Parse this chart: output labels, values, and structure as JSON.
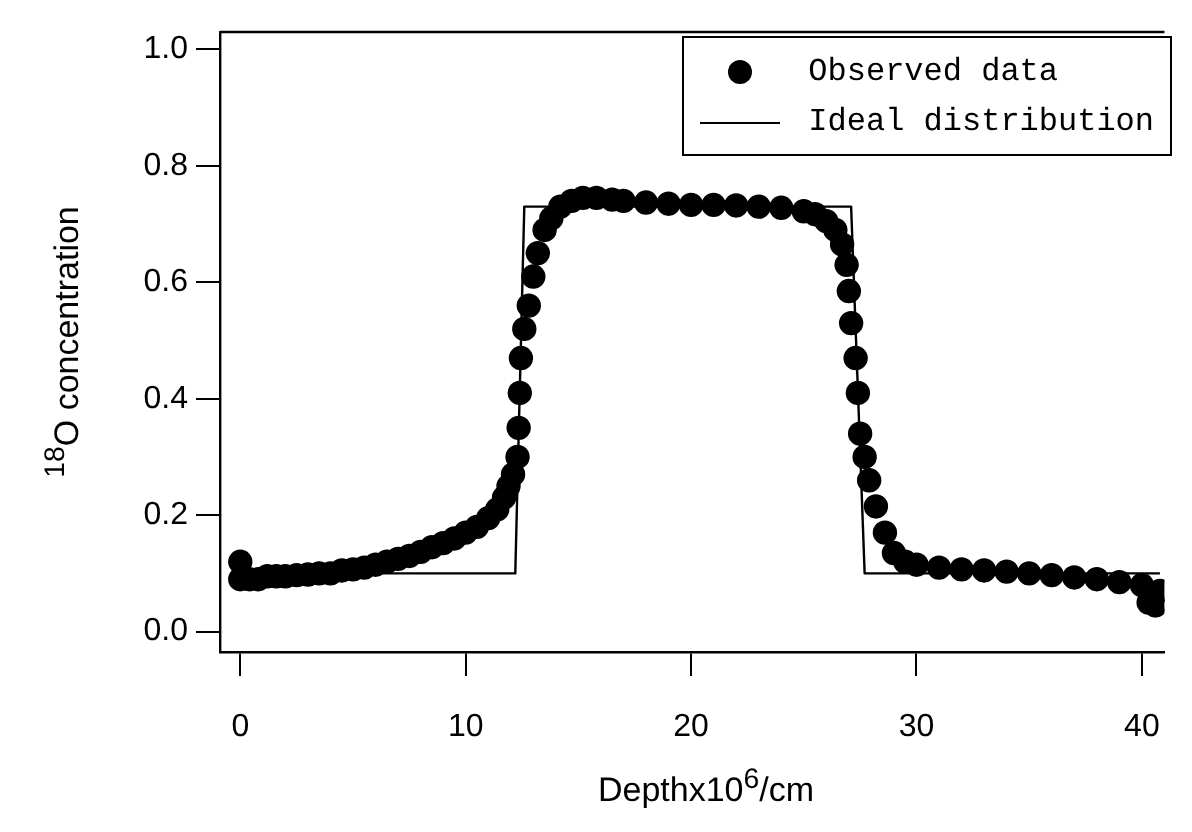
{
  "chart_data": {
    "type": "scatter",
    "xlabel": "Depthx10$^{6}$/cm",
    "ylabel": "$^{18}$O concentration",
    "xlim": [
      -0.9,
      41
    ],
    "ylim": [
      -0.035,
      1.03
    ],
    "xticks": [
      0,
      10,
      20,
      30,
      40
    ],
    "yticks": [
      {
        "value": 0,
        "label": "0.0"
      },
      0.2,
      0.4,
      0.6,
      0.8,
      {
        "value": 1,
        "label": "1.0"
      }
    ],
    "grid": false,
    "legend": "top right",
    "series": [
      {
        "name": "Observed data",
        "type": "scatter",
        "marker": "circle",
        "color": "#000000",
        "x": [
          0,
          0,
          0.4,
          0.8,
          1.2,
          1.6,
          2,
          2.5,
          3,
          3.5,
          4,
          4.5,
          5,
          5.5,
          6,
          6.5,
          7,
          7.5,
          8,
          8.5,
          9,
          9.5,
          10,
          10.5,
          11,
          11.4,
          11.7,
          11.9,
          12.1,
          12.3,
          12.35,
          12.4,
          12.45,
          12.6,
          12.8,
          13,
          13.2,
          13.5,
          13.8,
          14.2,
          14.7,
          15.2,
          15.8,
          16.5,
          17,
          18,
          19,
          20,
          21,
          22,
          23,
          24,
          25,
          25.5,
          26,
          26.4,
          26.7,
          26.9,
          27,
          27.1,
          27.3,
          27.4,
          27.5,
          27.7,
          27.9,
          28.2,
          28.6,
          29,
          29.5,
          30,
          31,
          32,
          33,
          34,
          35,
          36,
          37,
          38,
          39,
          40,
          40.3,
          40.6,
          40.8
        ],
        "values": [
          0.12,
          0.09,
          0.09,
          0.09,
          0.095,
          0.095,
          0.095,
          0.097,
          0.098,
          0.1,
          0.1,
          0.105,
          0.107,
          0.11,
          0.115,
          0.12,
          0.125,
          0.13,
          0.137,
          0.145,
          0.152,
          0.16,
          0.17,
          0.18,
          0.195,
          0.21,
          0.23,
          0.25,
          0.27,
          0.3,
          0.35,
          0.41,
          0.47,
          0.52,
          0.56,
          0.61,
          0.65,
          0.69,
          0.71,
          0.73,
          0.74,
          0.745,
          0.745,
          0.742,
          0.74,
          0.737,
          0.735,
          0.733,
          0.733,
          0.732,
          0.73,
          0.728,
          0.722,
          0.717,
          0.705,
          0.69,
          0.665,
          0.63,
          0.585,
          0.53,
          0.47,
          0.41,
          0.34,
          0.3,
          0.26,
          0.215,
          0.17,
          0.135,
          0.12,
          0.115,
          0.11,
          0.107,
          0.105,
          0.103,
          0.1,
          0.097,
          0.093,
          0.09,
          0.085,
          0.08,
          0.05,
          0.045,
          0.07
        ]
      },
      {
        "name": "Ideal distribution",
        "type": "line",
        "marker": "none",
        "line_style": "solid",
        "color": "#000000",
        "x": [
          0,
          12.2,
          12.6,
          27.1,
          27.7,
          40.8
        ],
        "values": [
          0.1,
          0.1,
          0.73,
          0.73,
          0.1,
          0.1
        ]
      }
    ]
  }
}
